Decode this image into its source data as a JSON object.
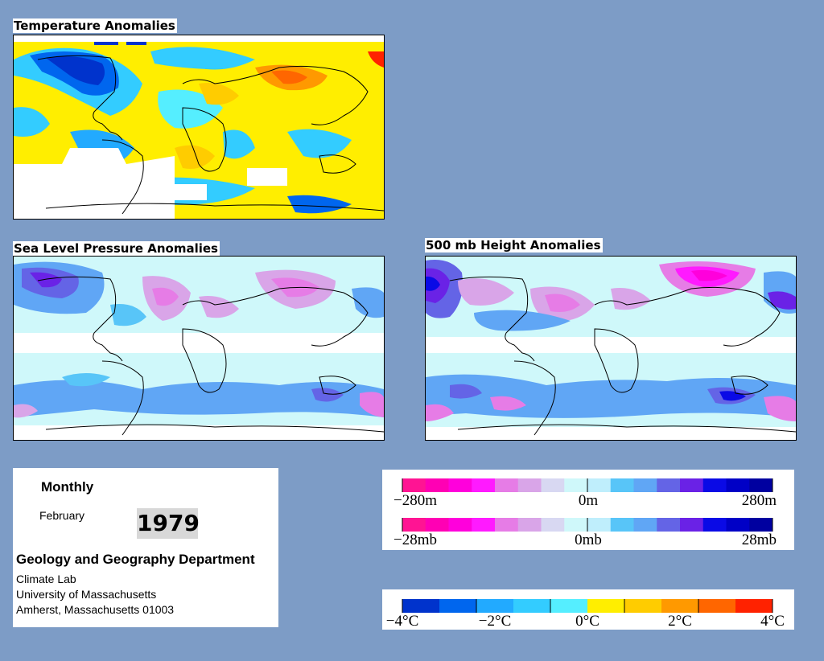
{
  "maps": {
    "temperature": {
      "title": "Temperature Anomalies"
    },
    "slp": {
      "title": "Sea Level Pressure Anomalies"
    },
    "height500": {
      "title": "500 mb Height Anomalies"
    }
  },
  "info": {
    "frequency": "Monthly",
    "month": "February",
    "year": "1979",
    "department": "Geology and Geography Department",
    "address": [
      "Climate Lab",
      "University of Massachusetts",
      "Amherst, Massachusetts 01003"
    ]
  },
  "legends": {
    "height": {
      "labels": [
        "−280m",
        "0m",
        "280m"
      ],
      "colors": [
        "#ff1493",
        "#ff00b4",
        "#ff00dc",
        "#ff1aff",
        "#e67ce6",
        "#d9a5e8",
        "#d8d8f2",
        "#cff8fa",
        "#bfeefc",
        "#58c5f8",
        "#60a6f5",
        "#6464e6",
        "#6a22e6",
        "#0a0ae6",
        "#0000c6",
        "#0000a0"
      ]
    },
    "pressure": {
      "labels": [
        "−28mb",
        "0mb",
        "28mb"
      ],
      "colors": [
        "#ff1493",
        "#ff00b4",
        "#ff00dc",
        "#ff1aff",
        "#e67ce6",
        "#d9a5e8",
        "#d8d8f2",
        "#cff8fa",
        "#bfeefc",
        "#58c5f8",
        "#60a6f5",
        "#6464e6",
        "#6a22e6",
        "#0a0ae6",
        "#0000c6",
        "#0000a0"
      ]
    },
    "temperature": {
      "labels": [
        "−4°C",
        "−2°C",
        "0°C",
        "2°C",
        "4°C"
      ],
      "colors": [
        "#0033cc",
        "#0066ee",
        "#22aaff",
        "#33ccff",
        "#55eeff",
        "#ffee00",
        "#ffcc00",
        "#ff9900",
        "#ff6600",
        "#ff2200"
      ]
    }
  },
  "colors": {
    "page_background": "#7d9cc6",
    "ocean_neutral": "#cff8fa",
    "negative_height": "#60a6f5",
    "positive_height": "#e67ce6"
  }
}
